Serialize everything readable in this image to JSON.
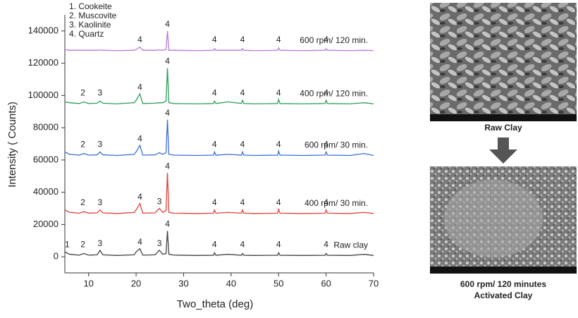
{
  "chart_data": {
    "type": "line",
    "xlabel": "Two_theta (deg)",
    "ylabel": "Intensity ( Counts)",
    "legend_note": [
      "1. Cookeite",
      "2. Muscovite",
      "3. Kaolinite",
      "4. Quartz"
    ],
    "xlim": [
      5,
      70
    ],
    "xticks": [
      10,
      20,
      30,
      40,
      50,
      60,
      70
    ],
    "ylim": [
      -10000,
      150000
    ],
    "yticks": [
      0,
      20000,
      40000,
      60000,
      80000,
      100000,
      120000,
      140000
    ],
    "x": [
      5,
      6,
      8,
      9,
      10,
      11.8,
      12.4,
      13,
      16,
      19.6,
      20,
      20.8,
      21.4,
      24,
      24.9,
      25.6,
      26.3,
      26.6,
      26.9,
      28,
      33,
      36.3,
      36.5,
      36.8,
      39.4,
      42.2,
      42.4,
      42.7,
      45,
      49.8,
      50,
      50.3,
      55,
      59.8,
      60,
      60.3,
      65,
      68,
      70
    ],
    "series": [
      {
        "name": "Raw clay",
        "color": "#444444",
        "values": [
          3000,
          1500,
          1000,
          2000,
          1000,
          1200,
          4000,
          1200,
          800,
          1200,
          3000,
          5000,
          1000,
          1200,
          4000,
          1500,
          2000,
          16000,
          1500,
          1000,
          800,
          900,
          2500,
          900,
          1500,
          900,
          2000,
          900,
          800,
          900,
          2500,
          900,
          800,
          900,
          2000,
          900,
          800,
          1500,
          800
        ],
        "peak_labels": [
          {
            "x": 5.5,
            "text": "1"
          },
          {
            "x": 8.8,
            "text": "2"
          },
          {
            "x": 12.4,
            "text": "3"
          },
          {
            "x": 20.8,
            "text": "4"
          },
          {
            "x": 24.9,
            "text": "3"
          },
          {
            "x": 26.6,
            "text": "4"
          },
          {
            "x": 36.5,
            "text": "4"
          },
          {
            "x": 42.4,
            "text": "4"
          },
          {
            "x": 50,
            "text": "4"
          },
          {
            "x": 60,
            "text": "4"
          }
        ]
      },
      {
        "name": "400 rpm/ 30 min.",
        "color": "#e0403a",
        "values": [
          29000,
          27500,
          27000,
          28000,
          27000,
          27200,
          29000,
          27200,
          26800,
          27500,
          29000,
          33000,
          27000,
          27200,
          30000,
          27500,
          28500,
          52000,
          27500,
          27000,
          26800,
          27000,
          29000,
          27000,
          27500,
          27000,
          29000,
          27000,
          26800,
          27000,
          29500,
          27000,
          26800,
          27000,
          29000,
          27000,
          26800,
          27500,
          26800
        ],
        "peak_labels": [
          {
            "x": 8.8,
            "text": "2"
          },
          {
            "x": 12.4,
            "text": "3"
          },
          {
            "x": 20.8,
            "text": "4"
          },
          {
            "x": 24.9,
            "text": "3"
          },
          {
            "x": 26.6,
            "text": "4"
          },
          {
            "x": 36.5,
            "text": "4"
          },
          {
            "x": 42.4,
            "text": "4"
          },
          {
            "x": 50,
            "text": "4"
          },
          {
            "x": 60,
            "text": "4"
          }
        ]
      },
      {
        "name": "600 rpm/ 30 min.",
        "color": "#3a6fd8",
        "values": [
          65000,
          63500,
          63000,
          64000,
          63000,
          63200,
          65000,
          63200,
          62800,
          63500,
          65000,
          69000,
          63000,
          63200,
          64500,
          63500,
          64500,
          85000,
          63500,
          63000,
          62800,
          63000,
          65000,
          63000,
          63500,
          63000,
          65000,
          63000,
          62800,
          63000,
          65500,
          63000,
          62800,
          63000,
          65000,
          63000,
          62800,
          64000,
          62800
        ],
        "peak_labels": [
          {
            "x": 8.8,
            "text": "2"
          },
          {
            "x": 12.4,
            "text": "3"
          },
          {
            "x": 20.8,
            "text": "4"
          },
          {
            "x": 26.6,
            "text": "4"
          },
          {
            "x": 36.5,
            "text": "4"
          },
          {
            "x": 42.4,
            "text": "4"
          },
          {
            "x": 50,
            "text": "4"
          },
          {
            "x": 60,
            "text": "4"
          }
        ]
      },
      {
        "name": "400 rpm/ 120 min.",
        "color": "#2e9e5a",
        "values": [
          96000,
          95500,
          95000,
          96000,
          95000,
          95200,
          96500,
          95200,
          94800,
          95500,
          97000,
          101000,
          95000,
          95200,
          95500,
          95500,
          96500,
          117000,
          95500,
          95000,
          94800,
          95000,
          96500,
          95000,
          96000,
          95000,
          97000,
          95000,
          94800,
          95000,
          97500,
          95000,
          94800,
          95000,
          97000,
          95000,
          94800,
          95500,
          94800
        ],
        "peak_labels": [
          {
            "x": 8.8,
            "text": "2"
          },
          {
            "x": 12.4,
            "text": "3"
          },
          {
            "x": 20.8,
            "text": "4"
          },
          {
            "x": 26.6,
            "text": "4"
          },
          {
            "x": 36.5,
            "text": "4"
          },
          {
            "x": 42.4,
            "text": "4"
          },
          {
            "x": 50,
            "text": "4"
          },
          {
            "x": 60,
            "text": "4"
          }
        ]
      },
      {
        "name": "600 rpm/ 120 min.",
        "color": "#b57bdc",
        "values": [
          128500,
          128000,
          128000,
          128000,
          128000,
          128000,
          128200,
          128000,
          127800,
          128000,
          128500,
          130000,
          128000,
          128000,
          128200,
          128000,
          128500,
          140000,
          128000,
          128000,
          127800,
          128000,
          129000,
          128000,
          128000,
          128000,
          129000,
          128000,
          127800,
          128000,
          129500,
          128000,
          127800,
          128000,
          129000,
          128000,
          127800,
          128000,
          127800
        ],
        "peak_labels": [
          {
            "x": 20.8,
            "text": "4"
          },
          {
            "x": 26.6,
            "text": "4"
          },
          {
            "x": 36.5,
            "text": "4"
          },
          {
            "x": 42.4,
            "text": "4"
          },
          {
            "x": 50,
            "text": "4"
          },
          {
            "x": 60,
            "text": "4"
          }
        ]
      }
    ]
  },
  "images": {
    "top_caption": "Raw Clay",
    "bottom_caption": [
      "600 rpm/ 120 minutes",
      "Activated Clay"
    ]
  }
}
